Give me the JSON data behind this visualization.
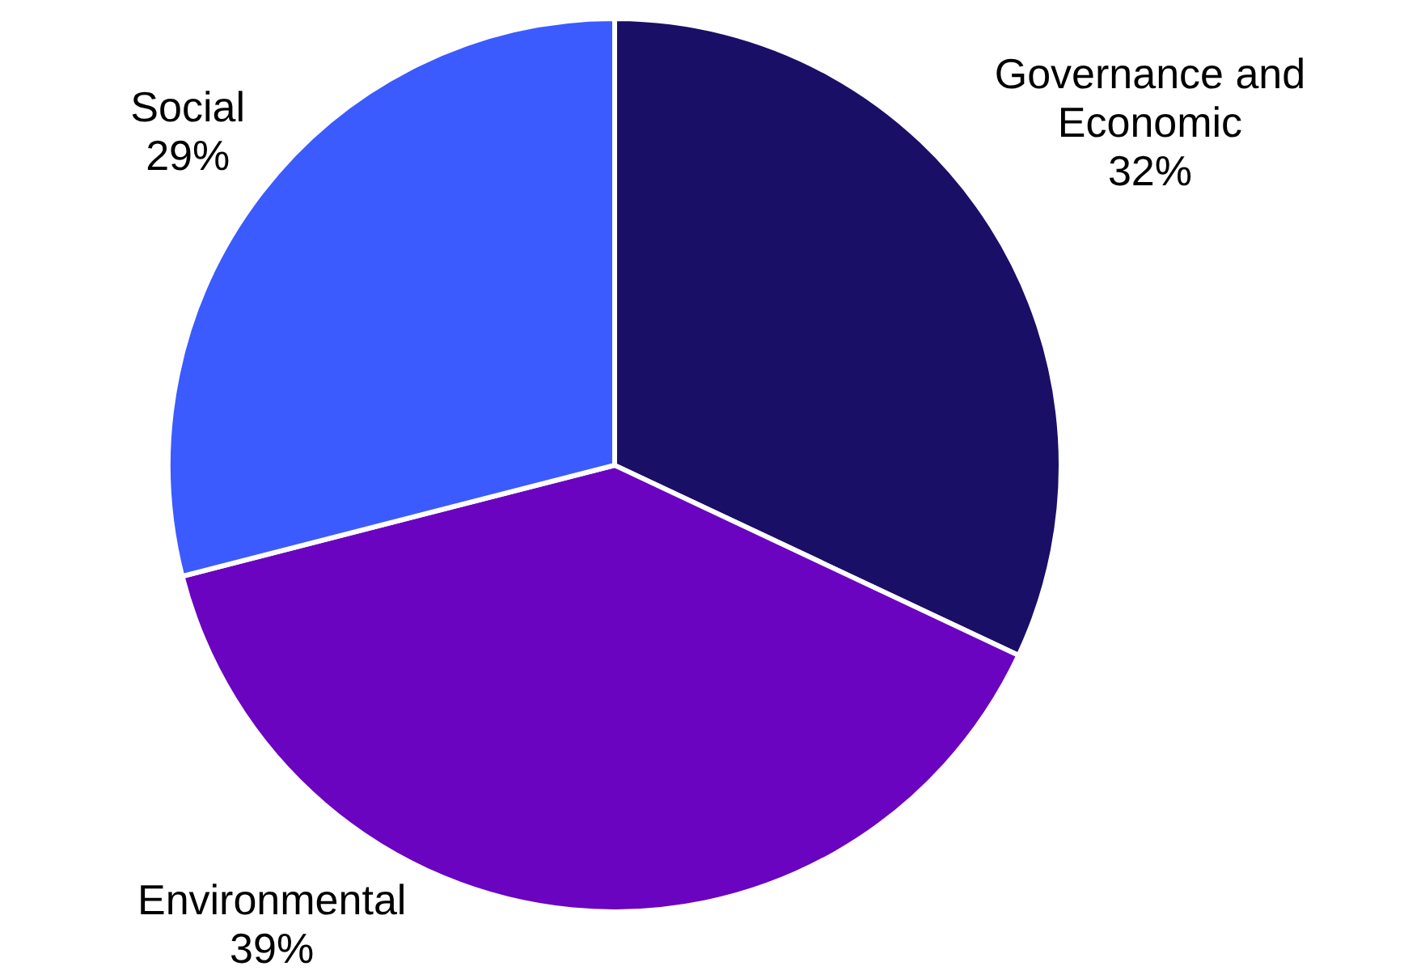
{
  "chart_data": {
    "type": "pie",
    "categories": [
      "Governance and Economic",
      "Environmental",
      "Social"
    ],
    "values": [
      32,
      39,
      29
    ],
    "colors": [
      "#1a0f66",
      "#6a04c0",
      "#3b5bff"
    ],
    "value_labels": [
      "32%",
      "39%",
      "29%"
    ],
    "legend": false
  }
}
